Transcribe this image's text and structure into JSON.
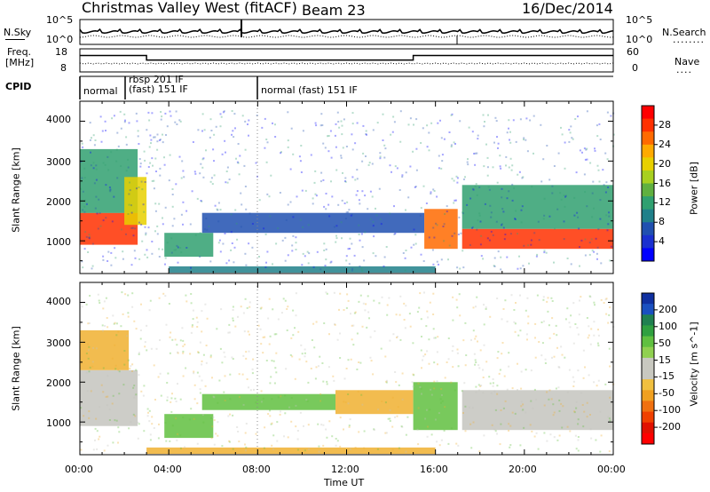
{
  "header": {
    "station": "Christmas Valley West (fitACF)",
    "beam": "Beam 23",
    "date": "16/Dec/2014"
  },
  "sky_panel": {
    "left_label": "N.Sky",
    "left_ticks": [
      "10^5",
      "10^0"
    ],
    "right_ticks": [
      "10^5",
      "10^0"
    ],
    "right_label": "N.Search",
    "right_legend_line": "........"
  },
  "freq_panel": {
    "left_label_line1": "Freq.",
    "left_label_line2": "[MHz]",
    "left_ticks": [
      "18",
      "8"
    ],
    "right_ticks": [
      "60",
      "0"
    ],
    "right_label": "Nave",
    "right_legend_line": "....",
    "freq_steps": [
      [
        0,
        15.5
      ],
      [
        3,
        15.5
      ],
      [
        3,
        13.2
      ],
      [
        15,
        13.2
      ],
      [
        15,
        15.5
      ],
      [
        17.0,
        15.5
      ],
      [
        17.0,
        null
      ],
      [
        17.2,
        15.5
      ],
      [
        24,
        15.5
      ]
    ]
  },
  "cpid": {
    "label": "CPID",
    "segments": [
      {
        "start": 0,
        "text": "normal"
      },
      {
        "start": 2.05,
        "text": "rbsp 201 IF"
      },
      {
        "start": 2.05,
        "text": "(fast) 151 IF"
      },
      {
        "start": 8.0,
        "text": "normal (fast) 151 IF"
      }
    ]
  },
  "power_colorbar": {
    "label": "Power [dB]",
    "ticks": [
      "28",
      "24",
      "20",
      "16",
      "12",
      "8",
      "4"
    ],
    "colors": [
      "#ff0000",
      "#ff3000",
      "#ff6a00",
      "#ffaa00",
      "#e8d000",
      "#a8d020",
      "#60b040",
      "#30a070",
      "#20808a",
      "#2050b0",
      "#1a30d0",
      "#0000ff"
    ]
  },
  "velocity_colorbar": {
    "label": "Velocity [m s^-1]",
    "ticks": [
      "200",
      "100",
      "50",
      "15",
      "-15",
      "-50",
      "-100",
      "-200"
    ],
    "colors": [
      "#1030a0",
      "#1a50c0",
      "#208050",
      "#30a040",
      "#60c040",
      "#90d050",
      "#c8c8c0",
      "#c8c8c0",
      "#f0c040",
      "#f0a020",
      "#f07010",
      "#f04000",
      "#e01000",
      "#ff0000"
    ]
  },
  "chart_data": [
    {
      "type": "heatmap",
      "title": "Power",
      "xlabel": "",
      "ylabel": "Slant Range [km]",
      "xlim": [
        0,
        24
      ],
      "ylim": [
        180,
        4500
      ],
      "yticks": [
        1000,
        2000,
        3000,
        4000
      ],
      "grid": false,
      "echo_regions": [
        {
          "t_start": 0.0,
          "t_end": 2.6,
          "range_low": 900,
          "range_high": 1700,
          "power_db": 26
        },
        {
          "t_start": 0.0,
          "t_end": 2.6,
          "range_low": 1700,
          "range_high": 3300,
          "power_db": 10
        },
        {
          "t_start": 2.0,
          "t_end": 3.0,
          "range_low": 1400,
          "range_high": 2600,
          "power_db": 20
        },
        {
          "t_start": 3.8,
          "t_end": 6.0,
          "range_low": 600,
          "range_high": 1200,
          "power_db": 10
        },
        {
          "t_start": 5.5,
          "t_end": 15.5,
          "range_low": 1200,
          "range_high": 1700,
          "power_db": 6
        },
        {
          "t_start": 15.5,
          "t_end": 17.0,
          "range_low": 800,
          "range_high": 1800,
          "power_db": 24
        },
        {
          "t_start": 17.2,
          "t_end": 24.0,
          "range_low": 800,
          "range_high": 1300,
          "power_db": 26
        },
        {
          "t_start": 17.2,
          "t_end": 24.0,
          "range_low": 1300,
          "range_high": 2400,
          "power_db": 10
        },
        {
          "t_start": 4.0,
          "t_end": 16.0,
          "range_low": 200,
          "range_high": 360,
          "power_db": 8
        }
      ]
    },
    {
      "type": "heatmap",
      "title": "Velocity",
      "xlabel": "Time UT",
      "ylabel": "Slant Range [km]",
      "xlim": [
        0,
        24
      ],
      "ylim": [
        180,
        4500
      ],
      "xticks": [
        "00:00",
        "04:00",
        "08:00",
        "12:00",
        "16:00",
        "20:00",
        "00:00"
      ],
      "yticks": [
        1000,
        2000,
        3000,
        4000
      ],
      "grid": false,
      "echo_regions": [
        {
          "t_start": 0.0,
          "t_end": 2.6,
          "range_low": 900,
          "range_high": 2300,
          "velocity": 0
        },
        {
          "t_start": 0.0,
          "t_end": 2.2,
          "range_low": 2300,
          "range_high": 3300,
          "velocity": -40
        },
        {
          "t_start": 3.8,
          "t_end": 6.0,
          "range_low": 600,
          "range_high": 1200,
          "velocity": 40
        },
        {
          "t_start": 5.5,
          "t_end": 11.5,
          "range_low": 1300,
          "range_high": 1700,
          "velocity": 40
        },
        {
          "t_start": 11.5,
          "t_end": 15.0,
          "range_low": 1200,
          "range_high": 1800,
          "velocity": -50
        },
        {
          "t_start": 15.0,
          "t_end": 17.0,
          "range_low": 800,
          "range_high": 2000,
          "velocity": 30
        },
        {
          "t_start": 17.2,
          "t_end": 24.0,
          "range_low": 800,
          "range_high": 1800,
          "velocity": 0
        },
        {
          "t_start": 3.0,
          "t_end": 16.0,
          "range_low": 200,
          "range_high": 360,
          "velocity": -40
        }
      ]
    }
  ]
}
